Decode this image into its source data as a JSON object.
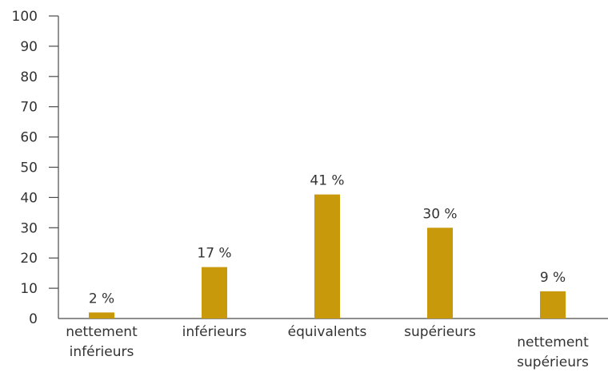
{
  "chart_data": {
    "type": "bar",
    "categories": [
      [
        "nettement",
        "inférieurs"
      ],
      [
        "inférieurs"
      ],
      [
        "équivalents"
      ],
      [
        "supérieurs"
      ],
      [
        "nettement",
        "supérieurs"
      ]
    ],
    "values": [
      2,
      17,
      41,
      30,
      9
    ],
    "data_labels": [
      "2 %",
      "17 %",
      "41 %",
      "30 %",
      "9 %"
    ],
    "yticks": [
      0,
      10,
      20,
      30,
      40,
      50,
      60,
      70,
      80,
      90,
      100
    ],
    "ylim": [
      0,
      100
    ],
    "grid": false,
    "bar_color": "#C8990A"
  }
}
